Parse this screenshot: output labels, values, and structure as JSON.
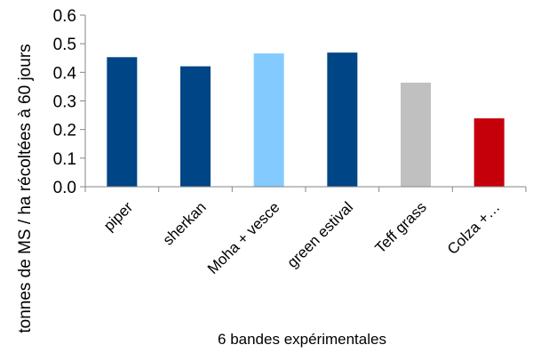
{
  "chart_data": {
    "type": "bar",
    "categories": [
      "piper",
      "sherkan",
      "Moha + vesce",
      "green estival",
      "Teff grass",
      "Colza +…"
    ],
    "values": [
      0.453,
      0.421,
      0.466,
      0.469,
      0.364,
      0.239
    ],
    "bar_colors": [
      "#004586",
      "#004586",
      "#83CAFF",
      "#004586",
      "#C0C0C0",
      "#C5000B"
    ],
    "title": "",
    "xlabel": "6 bandes expérimentales",
    "ylabel": "tonnes de MS / ha récoltées à 60 jours",
    "ylim": [
      0,
      0.6
    ],
    "yticks": [
      "0.0",
      "0.1",
      "0.2",
      "0.3",
      "0.4",
      "0.5",
      "0.6"
    ],
    "grid": false,
    "legend": "none"
  }
}
